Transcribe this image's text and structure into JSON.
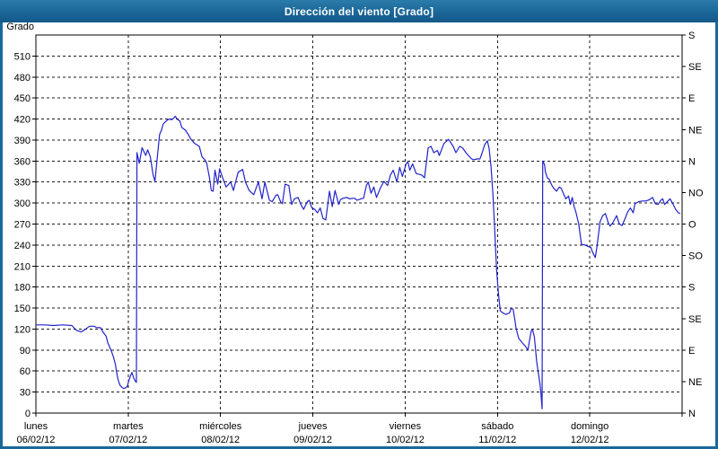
{
  "window": {
    "title": "Dirección del viento [Grado]"
  },
  "colors": {
    "frame": "#19689a",
    "titlebar": "#1d6a9c",
    "title_text": "#ffffff",
    "plot_background": "#ffffff",
    "line": "#2222cc",
    "grid": "#1b1b1b",
    "axis": "#000000",
    "label_text": "#000000"
  },
  "chart_data": {
    "type": "line",
    "title": "Dirección del viento [Grado]",
    "grid": "dashed, horizontal every 30 degrees, vertical at each day boundary",
    "legend_position": "none",
    "y_left": {
      "label": "Grado",
      "min": 0,
      "max": 540,
      "tick_step": 30,
      "label_max": 510
    },
    "y_right": {
      "unit": "compass",
      "ticks": [
        {
          "v": 540,
          "label": "S"
        },
        {
          "v": 495,
          "label": "SE"
        },
        {
          "v": 450,
          "label": "E"
        },
        {
          "v": 405,
          "label": "NE"
        },
        {
          "v": 360,
          "label": "N"
        },
        {
          "v": 315,
          "label": "NO"
        },
        {
          "v": 270,
          "label": "O"
        },
        {
          "v": 225,
          "label": "SO"
        },
        {
          "v": 180,
          "label": "S"
        },
        {
          "v": 135,
          "label": "SE"
        },
        {
          "v": 90,
          "label": "E"
        },
        {
          "v": 45,
          "label": "NE"
        },
        {
          "v": 0,
          "label": "N"
        }
      ]
    },
    "x": {
      "min": 0,
      "max": 7,
      "unit": "days",
      "day_ticks": [
        {
          "t": 0,
          "day": "lunes",
          "date": "06/02/12"
        },
        {
          "t": 1,
          "day": "martes",
          "date": "07/02/12"
        },
        {
          "t": 2,
          "day": "miércoles",
          "date": "08/02/12"
        },
        {
          "t": 3,
          "day": "jueves",
          "date": "09/02/12"
        },
        {
          "t": 4,
          "day": "viernes",
          "date": "10/02/12"
        },
        {
          "t": 5,
          "day": "sábado",
          "date": "11/02/12"
        },
        {
          "t": 6,
          "day": "domingo",
          "date": "12/02/12"
        }
      ]
    },
    "series": [
      {
        "name": "Dirección del viento",
        "color": "#2222cc",
        "points": [
          [
            0,
            126
          ],
          [
            0.1,
            126
          ],
          [
            0.19,
            125
          ],
          [
            0.29,
            126
          ],
          [
            0.39,
            125
          ],
          [
            0.44,
            118
          ],
          [
            0.49,
            116
          ],
          [
            0.53,
            119
          ],
          [
            0.58,
            124
          ],
          [
            0.63,
            124
          ],
          [
            0.66,
            122
          ],
          [
            0.7,
            122
          ],
          [
            0.73,
            115
          ],
          [
            0.76,
            110
          ],
          [
            0.78,
            100
          ],
          [
            0.8,
            94
          ],
          [
            0.82,
            88
          ],
          [
            0.84,
            80
          ],
          [
            0.86,
            70
          ],
          [
            0.875,
            58
          ],
          [
            0.89,
            48
          ],
          [
            0.91,
            40
          ],
          [
            0.93,
            37
          ],
          [
            0.95,
            35
          ],
          [
            0.97,
            36
          ],
          [
            0.99,
            38
          ],
          [
            1.01,
            48
          ],
          [
            1.03,
            55
          ],
          [
            1.04,
            58
          ],
          [
            1.06,
            50
          ],
          [
            1.08,
            45
          ],
          [
            1.089,
            44
          ],
          [
            1.095,
            372
          ],
          [
            1.12,
            357
          ],
          [
            1.15,
            379
          ],
          [
            1.19,
            368
          ],
          [
            1.21,
            376
          ],
          [
            1.24,
            366
          ],
          [
            1.27,
            340
          ],
          [
            1.29,
            331
          ],
          [
            1.32,
            372
          ],
          [
            1.34,
            398
          ],
          [
            1.36,
            404
          ],
          [
            1.38,
            413
          ],
          [
            1.41,
            417
          ],
          [
            1.44,
            420
          ],
          [
            1.47,
            419
          ],
          [
            1.49,
            421
          ],
          [
            1.51,
            424
          ],
          [
            1.53,
            420
          ],
          [
            1.56,
            417
          ],
          [
            1.58,
            408
          ],
          [
            1.62,
            404
          ],
          [
            1.65,
            398
          ],
          [
            1.68,
            391
          ],
          [
            1.72,
            385
          ],
          [
            1.77,
            381
          ],
          [
            1.8,
            366
          ],
          [
            1.83,
            362
          ],
          [
            1.85,
            357
          ],
          [
            1.88,
            336
          ],
          [
            1.9,
            318
          ],
          [
            1.92,
            317
          ],
          [
            1.94,
            347
          ],
          [
            1.97,
            327
          ],
          [
            1.99,
            349
          ],
          [
            2.02,
            337
          ],
          [
            2.06,
            323
          ],
          [
            2.11,
            330
          ],
          [
            2.14,
            318
          ],
          [
            2.19,
            344
          ],
          [
            2.24,
            348
          ],
          [
            2.27,
            330
          ],
          [
            2.31,
            318
          ],
          [
            2.36,
            312
          ],
          [
            2.41,
            330
          ],
          [
            2.45,
            306
          ],
          [
            2.48,
            330
          ],
          [
            2.53,
            304
          ],
          [
            2.56,
            302
          ],
          [
            2.6,
            311
          ],
          [
            2.62,
            312
          ],
          [
            2.65,
            302
          ],
          [
            2.67,
            299
          ],
          [
            2.7,
            327
          ],
          [
            2.74,
            325
          ],
          [
            2.77,
            298
          ],
          [
            2.8,
            306
          ],
          [
            2.84,
            308
          ],
          [
            2.87,
            298
          ],
          [
            2.9,
            291
          ],
          [
            2.94,
            302
          ],
          [
            2.96,
            304
          ],
          [
            2.99,
            293
          ],
          [
            3.02,
            291
          ],
          [
            3.05,
            286
          ],
          [
            3.08,
            293
          ],
          [
            3.11,
            278
          ],
          [
            3.14,
            276
          ],
          [
            3.18,
            317
          ],
          [
            3.21,
            295
          ],
          [
            3.24,
            318
          ],
          [
            3.28,
            298
          ],
          [
            3.3,
            305
          ],
          [
            3.33,
            307
          ],
          [
            3.37,
            308
          ],
          [
            3.4,
            306
          ],
          [
            3.45,
            307
          ],
          [
            3.48,
            304
          ],
          [
            3.52,
            306
          ],
          [
            3.55,
            307
          ],
          [
            3.58,
            325
          ],
          [
            3.6,
            330
          ],
          [
            3.63,
            314
          ],
          [
            3.66,
            323
          ],
          [
            3.69,
            308
          ],
          [
            3.73,
            321
          ],
          [
            3.77,
            331
          ],
          [
            3.81,
            325
          ],
          [
            3.84,
            340
          ],
          [
            3.87,
            347
          ],
          [
            3.91,
            330
          ],
          [
            3.94,
            351
          ],
          [
            3.97,
            338
          ],
          [
            4.01,
            356
          ],
          [
            4.03,
            359
          ],
          [
            4.05,
            347
          ],
          [
            4.08,
            356
          ],
          [
            4.12,
            342
          ],
          [
            4.15,
            341
          ],
          [
            4.18,
            340
          ],
          [
            4.21,
            336
          ],
          [
            4.25,
            379
          ],
          [
            4.28,
            381
          ],
          [
            4.31,
            372
          ],
          [
            4.35,
            375
          ],
          [
            4.37,
            368
          ],
          [
            4.42,
            385
          ],
          [
            4.47,
            391
          ],
          [
            4.52,
            381
          ],
          [
            4.55,
            372
          ],
          [
            4.59,
            381
          ],
          [
            4.62,
            379
          ],
          [
            4.67,
            370
          ],
          [
            4.72,
            363
          ],
          [
            4.74,
            362
          ],
          [
            4.78,
            363
          ],
          [
            4.81,
            363
          ],
          [
            4.83,
            370
          ],
          [
            4.86,
            383
          ],
          [
            4.89,
            389
          ],
          [
            4.91,
            378
          ],
          [
            4.93,
            352
          ],
          [
            4.95,
            315
          ],
          [
            4.97,
            262
          ],
          [
            4.99,
            205
          ],
          [
            5.01,
            172
          ],
          [
            5.03,
            146
          ],
          [
            5.06,
            143
          ],
          [
            5.09,
            141
          ],
          [
            5.11,
            142
          ],
          [
            5.13,
            143
          ],
          [
            5.15,
            150
          ],
          [
            5.17,
            148
          ],
          [
            5.19,
            132
          ],
          [
            5.2,
            122
          ],
          [
            5.23,
            107
          ],
          [
            5.27,
            100
          ],
          [
            5.3,
            96
          ],
          [
            5.33,
            90
          ],
          [
            5.365,
            117
          ],
          [
            5.38,
            119
          ],
          [
            5.4,
            109
          ],
          [
            5.415,
            87
          ],
          [
            5.425,
            73
          ],
          [
            5.44,
            60
          ],
          [
            5.46,
            42
          ],
          [
            5.47,
            30
          ],
          [
            5.483,
            6
          ],
          [
            5.49,
            360
          ],
          [
            5.51,
            355
          ],
          [
            5.52,
            344
          ],
          [
            5.54,
            336
          ],
          [
            5.56,
            334
          ],
          [
            5.59,
            325
          ],
          [
            5.61,
            321
          ],
          [
            5.64,
            317
          ],
          [
            5.67,
            323
          ],
          [
            5.69,
            321
          ],
          [
            5.72,
            312
          ],
          [
            5.74,
            306
          ],
          [
            5.77,
            310
          ],
          [
            5.79,
            298
          ],
          [
            5.81,
            308
          ],
          [
            5.83,
            295
          ],
          [
            5.85,
            287
          ],
          [
            5.88,
            270
          ],
          [
            5.91,
            241
          ],
          [
            5.95,
            240
          ],
          [
            5.98,
            238
          ],
          [
            6.01,
            237
          ],
          [
            6.03,
            230
          ],
          [
            6.06,
            222
          ],
          [
            6.08,
            240
          ],
          [
            6.11,
            273
          ],
          [
            6.14,
            282
          ],
          [
            6.17,
            285
          ],
          [
            6.2,
            272
          ],
          [
            6.22,
            267
          ],
          [
            6.25,
            272
          ],
          [
            6.29,
            282
          ],
          [
            6.32,
            270
          ],
          [
            6.35,
            268
          ],
          [
            6.38,
            277
          ],
          [
            6.41,
            287
          ],
          [
            6.44,
            293
          ],
          [
            6.47,
            286
          ],
          [
            6.49,
            299
          ],
          [
            6.53,
            302
          ],
          [
            6.57,
            303
          ],
          [
            6.61,
            303
          ],
          [
            6.65,
            305
          ],
          [
            6.68,
            308
          ],
          [
            6.71,
            299
          ],
          [
            6.74,
            298
          ],
          [
            6.77,
            304
          ],
          [
            6.79,
            306
          ],
          [
            6.81,
            298
          ],
          [
            6.84,
            302
          ],
          [
            6.87,
            306
          ],
          [
            6.9,
            299
          ],
          [
            6.93,
            291
          ],
          [
            6.96,
            286
          ],
          [
            6.98,
            285
          ]
        ]
      }
    ]
  }
}
